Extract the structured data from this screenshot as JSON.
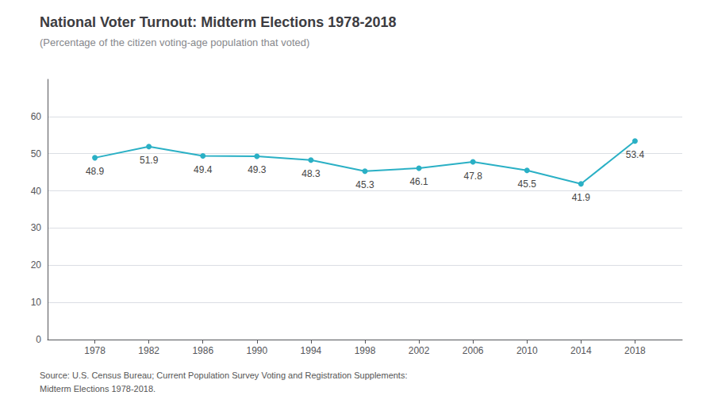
{
  "chart_data": {
    "type": "line",
    "title": "National Voter Turnout: Midterm Elections 1978-2018",
    "subtitle": "(Percentage of the citizen voting-age population that voted)",
    "annotations": [
      "Source: U.S. Census Bureau; Current Population Survey Voting and Registration Supplements:\nMidterm Elections 1978-2018."
    ],
    "x": [
      1978,
      1982,
      1986,
      1990,
      1994,
      1998,
      2002,
      2006,
      2010,
      2014,
      2018
    ],
    "values": [
      48.9,
      51.9,
      49.4,
      49.3,
      48.3,
      45.3,
      46.1,
      47.8,
      45.5,
      41.9,
      53.4
    ],
    "color": "#2ab0c5",
    "marker": "circle",
    "xlim": [
      1974.5,
      2021.5
    ],
    "xticks": [
      1978,
      1982,
      1986,
      1990,
      1994,
      1998,
      2002,
      2006,
      2010,
      2014,
      2018
    ],
    "ylim": [
      0,
      70
    ],
    "yticks": [
      0,
      10,
      20,
      30,
      40,
      50,
      60
    ],
    "grid": true,
    "data_labels": true
  }
}
